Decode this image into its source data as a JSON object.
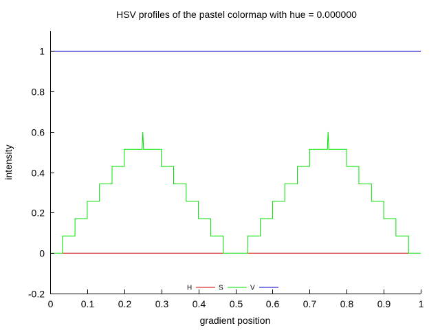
{
  "chart_data": {
    "type": "line",
    "title": "HSV profiles of the pastel colormap with hue = 0.000000",
    "xlabel": "gradient position",
    "ylabel": "intensity",
    "xlim": [
      0,
      1
    ],
    "ylim": [
      -0.2,
      1.1
    ],
    "xticks": [
      "0",
      "0.1",
      "0.2",
      "0.3",
      "0.4",
      "0.5",
      "0.6",
      "0.7",
      "0.8",
      "0.9",
      "1"
    ],
    "yticks": [
      "-0.2",
      "0",
      "0.2",
      "0.4",
      "0.6",
      "0.8",
      "1"
    ],
    "grid": false,
    "legend_position": "bottom-center",
    "series": [
      {
        "name": "H",
        "color": "#d00000",
        "x": [
          0.033,
          0.467,
          0.467,
          0.533,
          0.533,
          0.967
        ],
        "y": [
          0,
          0,
          null,
          null,
          0,
          0
        ]
      },
      {
        "name": "S",
        "color": "#00e000",
        "x": [
          0,
          0.033,
          0.033,
          0.067,
          0.067,
          0.1,
          0.1,
          0.133,
          0.133,
          0.167,
          0.167,
          0.2,
          0.2,
          0.248,
          0.25,
          0.252,
          0.3,
          0.3,
          0.333,
          0.333,
          0.367,
          0.367,
          0.4,
          0.4,
          0.433,
          0.433,
          0.467,
          0.467,
          0.533,
          0.533,
          0.567,
          0.567,
          0.6,
          0.6,
          0.633,
          0.633,
          0.667,
          0.667,
          0.7,
          0.7,
          0.748,
          0.75,
          0.752,
          0.8,
          0.8,
          0.833,
          0.833,
          0.867,
          0.867,
          0.9,
          0.9,
          0.933,
          0.933,
          0.967,
          0.967,
          1
        ],
        "y": [
          0,
          0,
          0.085,
          0.085,
          0.171,
          0.171,
          0.257,
          0.257,
          0.343,
          0.343,
          0.429,
          0.429,
          0.514,
          0.514,
          0.6,
          0.514,
          0.514,
          0.429,
          0.429,
          0.343,
          0.343,
          0.257,
          0.257,
          0.171,
          0.171,
          0.085,
          0.085,
          0,
          0,
          0.085,
          0.085,
          0.171,
          0.171,
          0.257,
          0.257,
          0.343,
          0.343,
          0.429,
          0.429,
          0.514,
          0.514,
          0.6,
          0.514,
          0.514,
          0.429,
          0.429,
          0.343,
          0.343,
          0.257,
          0.257,
          0.171,
          0.171,
          0.085,
          0.085,
          0,
          0
        ]
      },
      {
        "name": "V",
        "color": "#0000c8",
        "x": [
          0,
          1
        ],
        "y": [
          1,
          1
        ]
      }
    ]
  }
}
